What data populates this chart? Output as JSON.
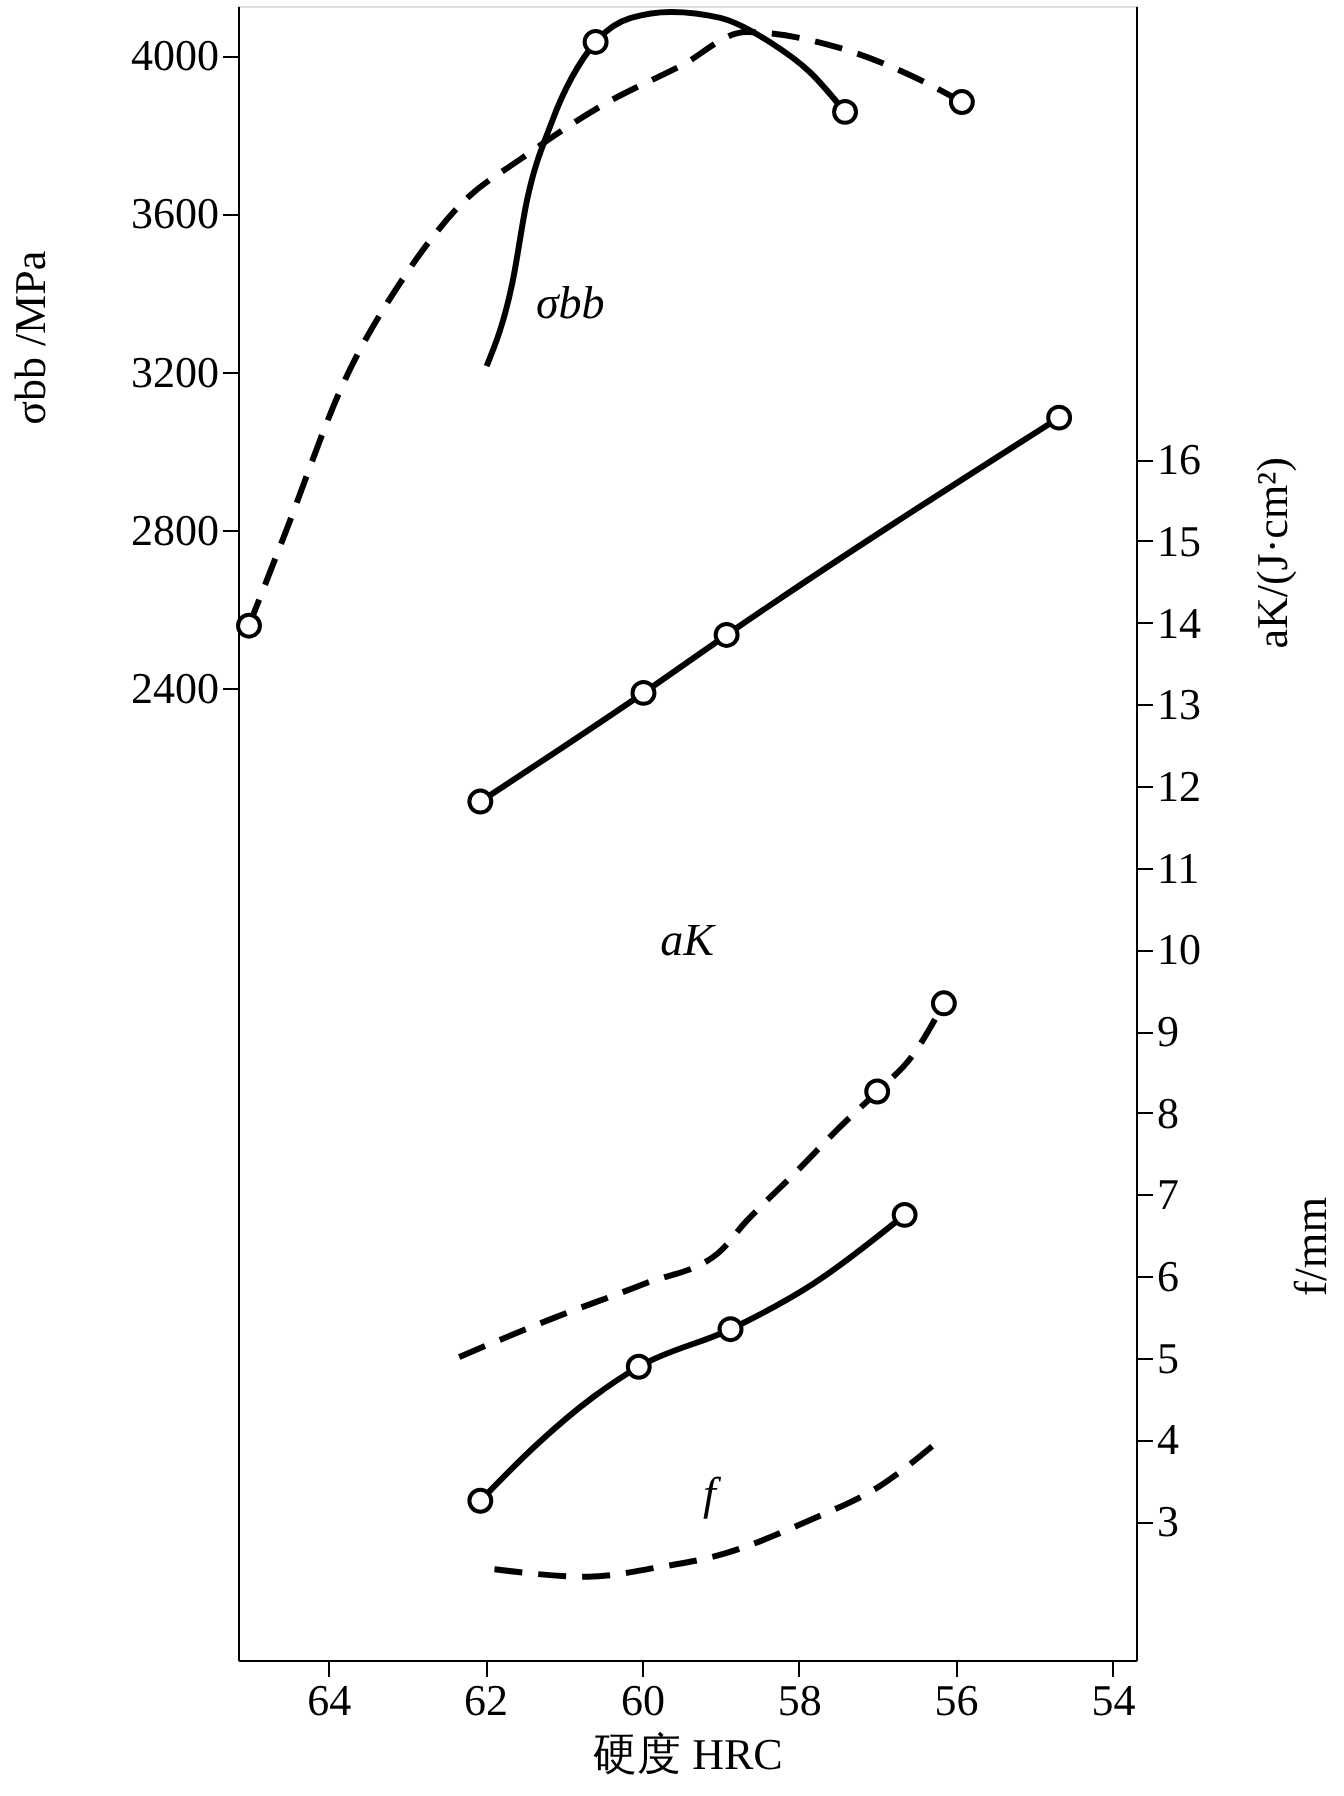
{
  "chart_data": {
    "type": "line",
    "xlabel": "硬度 HRC",
    "ylabel": "σbb /MPa",
    "y2label": "aK/(J·cm²)",
    "xlim": [
      65.15,
      53.7
    ],
    "xticks": [
      64,
      62,
      60,
      58,
      56,
      54
    ],
    "ylim": [
      -60,
      4125
    ],
    "yticks": [
      2400,
      2800,
      3200,
      3600,
      4000
    ],
    "y2lim": [
      1.3,
      21.55
    ],
    "y2ticks": [
      3,
      4,
      5,
      6,
      7,
      8,
      9,
      10,
      11,
      12,
      13,
      14,
      15,
      16
    ],
    "grid": false,
    "series": [
      {
        "axis": "y",
        "line_style": "solid",
        "marker": "none",
        "color": "#000000",
        "x": [
          61.98,
          61.65,
          61.47,
          61.15,
          60.59,
          60.14,
          59.63,
          59.0,
          58.37,
          57.86,
          57.41
        ],
        "values": [
          3214,
          3426,
          3629,
          3831,
          4034,
          4095,
          4110,
          4095,
          4034,
          3958,
          3857
        ]
      },
      {
        "axis": "y",
        "line_style": "dashed",
        "marker": "none",
        "color": "#000000",
        "x": [
          65.01,
          64.56,
          63.8,
          63.04,
          62.28,
          61.53,
          60.52,
          59.51,
          58.67,
          57.48,
          56.4,
          55.92
        ],
        "values": [
          2557,
          2785,
          3173,
          3437,
          3629,
          3740,
          3872,
          3973,
          4059,
          4019,
          3933,
          3882
        ]
      },
      {
        "type": "scatter",
        "axis": "y",
        "marker": "circle",
        "color": "#000000",
        "x": [
          60.59,
          57.41,
          65.01,
          55.92
        ],
        "values": [
          4034,
          3857,
          2557,
          3882
        ]
      },
      {
        "axis": "y2",
        "line_style": "solid",
        "marker": "none",
        "color": "#000000",
        "x": [
          62.06,
          59.98,
          58.92,
          54.68
        ],
        "values": [
          11.81,
          13.14,
          13.85,
          16.51
        ]
      },
      {
        "axis": "y2",
        "line_style": "dashed",
        "marker": "none",
        "color": "#000000",
        "x": [
          62.33,
          61.17,
          59.96,
          59.03,
          58.67,
          58.07,
          57.48,
          57.0,
          56.55,
          56.15
        ],
        "values": [
          5.01,
          5.47,
          5.91,
          6.28,
          6.67,
          7.24,
          7.82,
          8.26,
          8.7,
          9.34
        ]
      },
      {
        "axis": "y2",
        "line_style": "solid",
        "marker": "none",
        "color": "#000000",
        "x": [
          62.06,
          61.35,
          60.62,
          60.04,
          58.87,
          57.81,
          56.65
        ],
        "values": [
          3.25,
          3.93,
          4.52,
          4.89,
          5.35,
          5.91,
          6.75
        ]
      },
      {
        "axis": "y2",
        "line_style": "dashed",
        "marker": "none",
        "color": "#000000",
        "x": [
          61.88,
          60.69,
          59.76,
          59.03,
          57.89,
          56.95,
          56.22
        ],
        "values": [
          2.41,
          2.32,
          2.44,
          2.58,
          3.0,
          3.44,
          3.98
        ]
      },
      {
        "type": "scatter",
        "axis": "y2",
        "marker": "circle",
        "color": "#000000",
        "x": [
          62.06,
          59.98,
          58.92,
          54.68,
          57.0,
          56.15,
          62.06,
          60.04,
          58.87,
          56.65
        ],
        "values": [
          11.81,
          13.14,
          13.85,
          16.51,
          8.26,
          9.34,
          3.25,
          4.89,
          5.35,
          6.75
        ]
      }
    ],
    "annotations": [
      "σbb",
      "aK",
      "f",
      "f/mm"
    ]
  }
}
